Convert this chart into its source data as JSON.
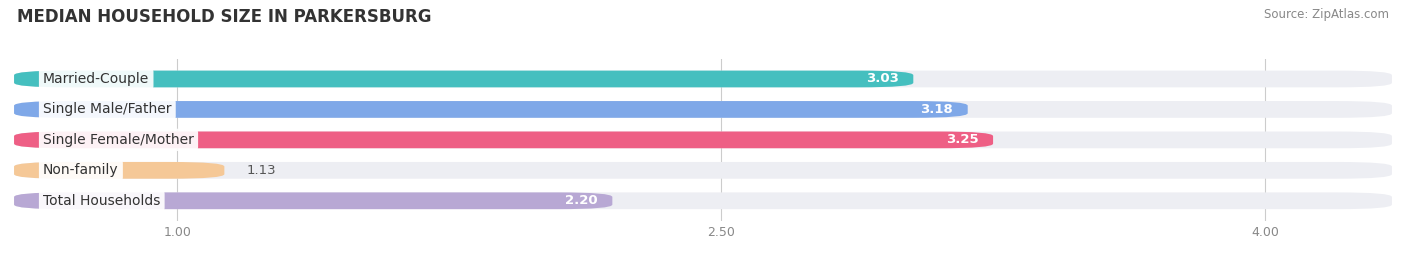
{
  "title": "MEDIAN HOUSEHOLD SIZE IN PARKERSBURG",
  "source": "Source: ZipAtlas.com",
  "categories": [
    "Married-Couple",
    "Single Male/Father",
    "Single Female/Mother",
    "Non-family",
    "Total Households"
  ],
  "values": [
    3.03,
    3.18,
    3.25,
    1.13,
    2.2
  ],
  "bar_colors": [
    "#45BFBF",
    "#7FA8E8",
    "#EE5F85",
    "#F5C897",
    "#B8A8D4"
  ],
  "bar_bg_color": "#EDEEF3",
  "fig_bg_color": "#FFFFFF",
  "xlim_left": 0.55,
  "xlim_right": 4.35,
  "xstart": 0.55,
  "xticks": [
    1.0,
    2.5,
    4.0
  ],
  "xticklabels": [
    "1.00",
    "2.50",
    "4.00"
  ],
  "label_fontsize": 10,
  "value_fontsize": 9.5,
  "title_fontsize": 12
}
